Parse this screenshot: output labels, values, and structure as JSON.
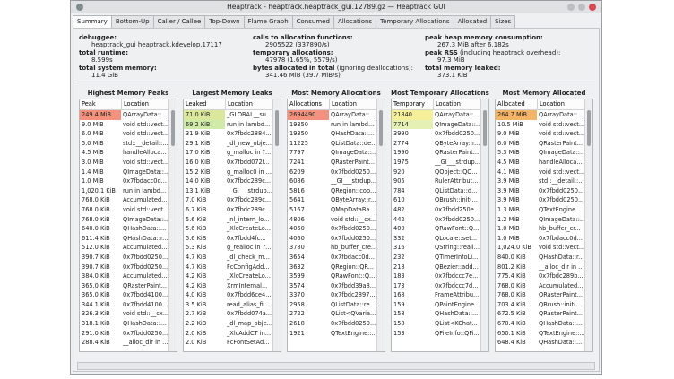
{
  "window": {
    "title": "Heaptrack - heaptrack.heaptrack_gui.12789.gz — Heaptrack GUI"
  },
  "tabs": [
    "Summary",
    "Bottom-Up",
    "Caller / Callee",
    "Top-Down",
    "Flame Graph",
    "Consumed",
    "Allocations",
    "Temporary Allocations",
    "Allocated",
    "Sizes"
  ],
  "summary": {
    "columns": [
      [
        {
          "label": "debuggee:",
          "value": "heaptrack_gui heaptrack.kdevelop.17117"
        },
        {
          "label": "total runtime:",
          "value": "8.599s"
        },
        {
          "label": "total system memory:",
          "value": "11.4 GiB"
        }
      ],
      [
        {
          "label": "calls to allocation functions:",
          "value": "2905522 (337890/s)"
        },
        {
          "label": "temporary allocations:",
          "value": "47978 (1.65%, 5579/s)"
        },
        {
          "label": "bytes allocated in total",
          "note": " (ignoring deallocations):",
          "value": "341.46 MiB (39.7 MiB/s)"
        }
      ],
      [
        {
          "label": "peak heap memory consumption:",
          "value": "267.3 MiB after 6.182s"
        },
        {
          "label": "peak RSS",
          "note": " (including heaptrack overhead):",
          "value": "97.3 MiB"
        },
        {
          "label": "total memory leaked:",
          "value": "373.1 KiB"
        }
      ]
    ]
  },
  "tables": [
    {
      "title": "Highest Memory Peaks",
      "headers": [
        "Peak",
        "Location"
      ],
      "rows": [
        [
          "249.4 MiB",
          "QArrayData::..."
        ],
        [
          "9.0 MiB",
          "void std::vect..."
        ],
        [
          "6.0 MiB",
          "void std::vect..."
        ],
        [
          "5.0 MiB",
          "std::__detail::..."
        ],
        [
          "4.5 MiB",
          "handleAlloca..."
        ],
        [
          "3.0 MiB",
          "void std::vect..."
        ],
        [
          "1.4 MiB",
          "QImageData::..."
        ],
        [
          "1.0 MiB",
          "0x7fbdacc0d..."
        ],
        [
          "1,020.1 KiB",
          "run in lambd..."
        ],
        [
          "768.0 KiB",
          "Accumulated..."
        ],
        [
          "768.0 KiB",
          "void std::vect..."
        ],
        [
          "768.0 KiB",
          "QImageData::..."
        ],
        [
          "640.0 KiB",
          "QHashData::..."
        ],
        [
          "611.4 KiB",
          "QHashData::r..."
        ],
        [
          "512.0 KiB",
          "Accumulated..."
        ],
        [
          "390.7 KiB",
          "0x7fbdd0250..."
        ],
        [
          "390.7 KiB",
          "0x7fbdd0250..."
        ],
        [
          "384.0 KiB",
          "Accumulated..."
        ],
        [
          "365.0 KiB",
          "QRasterPaint..."
        ],
        [
          "365.0 KiB",
          "0x7fbdd4100..."
        ],
        [
          "344.1 KiB",
          "0x7fbdd4100..."
        ],
        [
          "326.3 KiB",
          "void std::__cx..."
        ],
        [
          "318.1 KiB",
          "QHashData::..."
        ],
        [
          "291.0 KiB",
          "0x7fbdd0250..."
        ],
        [
          "288.4 KiB",
          "__alloc_dir in ..."
        ]
      ]
    },
    {
      "title": "Largest Memory Leaks",
      "headers": [
        "Leaked",
        "Location"
      ],
      "rows": [
        [
          "71.0 KiB",
          "_GLOBAL__su..."
        ],
        [
          "69.2 KiB",
          "run in lambd..."
        ],
        [
          "31.9 KiB",
          "0x7fbdc2884..."
        ],
        [
          "29.1 KiB",
          "_dl_new_obje..."
        ],
        [
          "17.0 KiB",
          "g_malloc in ?..."
        ],
        [
          "16.0 KiB",
          "0x7fbdd072f..."
        ],
        [
          "15.2 KiB",
          "g_malloc0 in ..."
        ],
        [
          "14.0 KiB",
          "0x7fbdc289c..."
        ],
        [
          "13.1 KiB",
          "__GI___strdup..."
        ],
        [
          "7.0 KiB",
          "0x7fbdc289c..."
        ],
        [
          "6.7 KiB",
          "0x7fbdc289c..."
        ],
        [
          "5.6 KiB",
          "_nl_intern_lo..."
        ],
        [
          "5.6 KiB",
          "_XlcCreateLo..."
        ],
        [
          "5.6 KiB",
          "0x7fbdd4fc..."
        ],
        [
          "5.3 KiB",
          "g_realloc in ?..."
        ],
        [
          "4.7 KiB",
          "_dl_check_m..."
        ],
        [
          "4.7 KiB",
          "FcConfigAdd..."
        ],
        [
          "4.2 KiB",
          "_XlcCreateLo..."
        ],
        [
          "4.2 KiB",
          "XrmInternal..."
        ],
        [
          "4.0 KiB",
          "0x7fbdd6ce4..."
        ],
        [
          "3.5 KiB",
          "read_alias_fil..."
        ],
        [
          "2.7 KiB",
          "0x7fbdd074a..."
        ],
        [
          "2.2 KiB",
          "_dl_map_obje..."
        ],
        [
          "2.0 KiB",
          "_XlcAddCT in..."
        ],
        [
          "2.0 KiB",
          "FcFontSetAd..."
        ]
      ]
    },
    {
      "title": "Most Memory Allocations",
      "headers": [
        "Allocations",
        "Location"
      ],
      "rows": [
        [
          "2694490",
          "QArrayData::..."
        ],
        [
          "19350",
          "run in lambd..."
        ],
        [
          "19350",
          "QHashData::..."
        ],
        [
          "11225",
          "QListData::de..."
        ],
        [
          "7797",
          "QImageData::..."
        ],
        [
          "7241",
          "QRasterPaint..."
        ],
        [
          "6209",
          "0x7fbdd0250..."
        ],
        [
          "6086",
          "__GI___strdup..."
        ],
        [
          "5816",
          "QRegion::cop..."
        ],
        [
          "5641",
          "QByteArray::r..."
        ],
        [
          "5167",
          "QMapDataBa..."
        ],
        [
          "4806",
          "void std::__cx..."
        ],
        [
          "4060",
          "0x7fbdd0250..."
        ],
        [
          "4060",
          "0x7fbdd0250..."
        ],
        [
          "3780",
          "hb_buffer_cre..."
        ],
        [
          "3654",
          "0x7fbdacc0d..."
        ],
        [
          "3632",
          "QRegion::QR..."
        ],
        [
          "3599",
          "QRawFont::Q..."
        ],
        [
          "3574",
          "0x7fbdd39a8..."
        ],
        [
          "3370",
          "0x7fbdc2897..."
        ],
        [
          "2958",
          "QListData::re..."
        ],
        [
          "2722",
          "QList<QVaria..."
        ],
        [
          "2618",
          "0x7fbdd0250..."
        ],
        [
          "1921",
          "QTextEngine::..."
        ]
      ]
    },
    {
      "title": "Most Temporary Allocations",
      "headers": [
        "Temporary",
        "Location"
      ],
      "rows": [
        [
          "21840",
          "QArrayData::..."
        ],
        [
          "7714",
          "QImageData::..."
        ],
        [
          "3990",
          "0x7fbdd0250..."
        ],
        [
          "2774",
          "QByteArray::r..."
        ],
        [
          "1990",
          "QRasterPaint..."
        ],
        [
          "1975",
          "__GI___strdup..."
        ],
        [
          "920",
          "QObject::QO..."
        ],
        [
          "905",
          "RulerAttribut..."
        ],
        [
          "784",
          "QListData::d..."
        ],
        [
          "610",
          "QBrush::init(..."
        ],
        [
          "482",
          "0x7fbdd250e..."
        ],
        [
          "442",
          "0x7fbdd0250..."
        ],
        [
          "400",
          "QRawFont::Q..."
        ],
        [
          "332",
          "QLocale::set..."
        ],
        [
          "316",
          "QString::reall..."
        ],
        [
          "232",
          "QTimerInfoLi..."
        ],
        [
          "218",
          "QBezier::add..."
        ],
        [
          "183",
          "0x7fbdccc7e..."
        ],
        [
          "173",
          "0x7fbdccc7d..."
        ],
        [
          "168",
          "FrameAttribu..."
        ],
        [
          "159",
          "QPaintEngine..."
        ],
        [
          "158",
          "QHashData::..."
        ],
        [
          "158",
          "QList<KChat..."
        ],
        [
          "153",
          "QFileInfo::QFi..."
        ]
      ]
    },
    {
      "title": "Most Memory Allocated",
      "headers": [
        "Allocated",
        "Location"
      ],
      "rows": [
        [
          "264.7 MiB",
          "QArrayData::..."
        ],
        [
          "10.5 MiB",
          "void std::vect..."
        ],
        [
          "9.0 MiB",
          "void std::vect..."
        ],
        [
          "6.0 MiB",
          "QRasterPaint..."
        ],
        [
          "5.3 MiB",
          "QImageData::..."
        ],
        [
          "4.5 MiB",
          "handleAlloca..."
        ],
        [
          "4.1 MiB",
          "void std::vect..."
        ],
        [
          "3.9 MiB",
          "std::__detail::..."
        ],
        [
          "3.9 MiB",
          "0x7fbdd0250..."
        ],
        [
          "3.9 MiB",
          "0x7fbdd0250..."
        ],
        [
          "1.3 MiB",
          "QTextEngine..."
        ],
        [
          "1.2 MiB",
          "QImageData::..."
        ],
        [
          "1.0 MiB",
          "hb_buffer_cr..."
        ],
        [
          "1.0 MiB",
          "0x7fbdacc0d..."
        ],
        [
          "1,024.0 KiB",
          "void std::vect..."
        ],
        [
          "840.0 KiB",
          "QHashData::r..."
        ],
        [
          "801.2 KiB",
          "__alloc_dir in ..."
        ],
        [
          "775.4 KiB",
          "0x7fbdc289b..."
        ],
        [
          "768.0 KiB",
          "Accumulated..."
        ],
        [
          "768.0 KiB",
          "QRasterPaint..."
        ],
        [
          "703.4 KiB",
          "QBrush::init(..."
        ],
        [
          "672.5 KiB",
          "QRasterPaint..."
        ],
        [
          "670.4 KiB",
          "QHashData::..."
        ],
        [
          "650.1 KiB",
          "QTextEngine::..."
        ],
        [
          "648.4 KiB",
          "QHashData::..."
        ]
      ]
    }
  ]
}
